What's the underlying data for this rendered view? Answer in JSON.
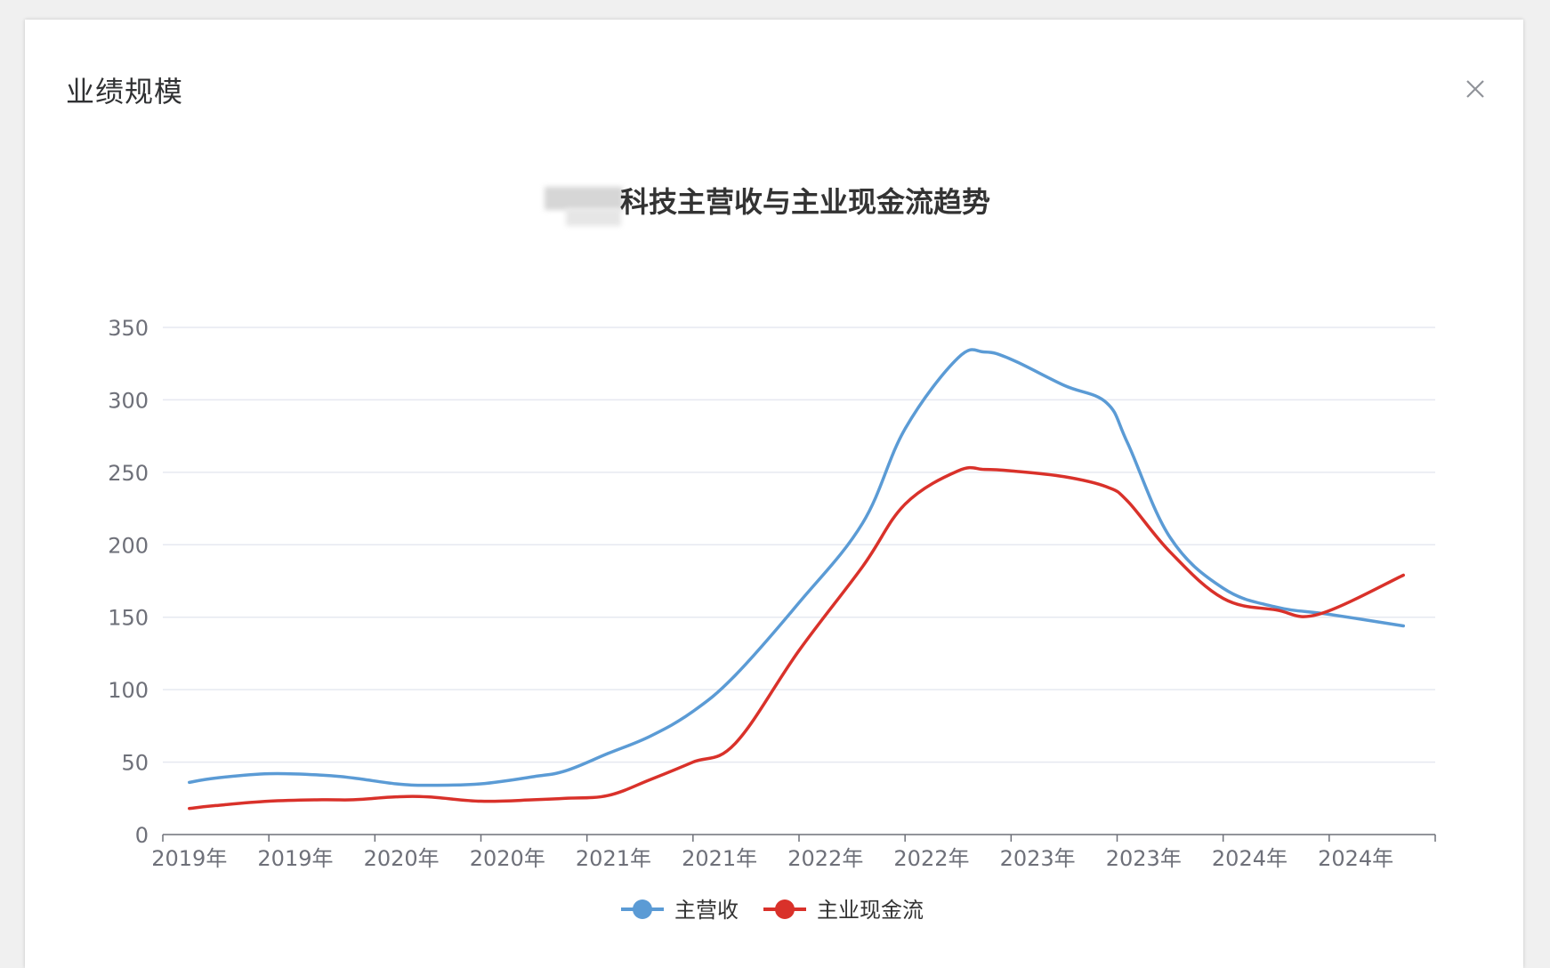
{
  "modal": {
    "title": "业绩规模",
    "close_icon": "close-icon"
  },
  "chart_data": {
    "type": "line",
    "title": "科技主营收与主业现金流趋势",
    "categories": [
      "2019年",
      "2019年",
      "2020年",
      "2020年",
      "2021年",
      "2021年",
      "2022年",
      "2022年",
      "2023年",
      "2023年",
      "2024年",
      "2024年"
    ],
    "ylim": [
      0,
      350
    ],
    "yticks": [
      0,
      50,
      100,
      150,
      200,
      250,
      300,
      350
    ],
    "grid": true,
    "legend_position": "bottom",
    "series": [
      {
        "name": "主营收",
        "color": "#5B9BD5",
        "x": [
          0.25,
          0.5,
          1.0,
          1.5,
          1.8,
          2.2,
          2.5,
          3.0,
          3.5,
          3.8,
          4.2,
          4.6,
          5.0,
          5.4,
          6.0,
          6.6,
          7.0,
          7.5,
          7.75,
          8.0,
          8.5,
          8.9,
          9.1,
          9.5,
          10.0,
          10.5,
          11.0,
          11.7
        ],
        "values": [
          36,
          39,
          42,
          41,
          39,
          35,
          34,
          35,
          40,
          44,
          56,
          68,
          85,
          110,
          160,
          215,
          280,
          329,
          333,
          328,
          310,
          298,
          270,
          205,
          170,
          157,
          152,
          144
        ]
      },
      {
        "name": "主业现金流",
        "color": "#D9312A",
        "x": [
          0.25,
          0.5,
          1.0,
          1.5,
          1.8,
          2.2,
          2.5,
          3.0,
          3.5,
          3.8,
          4.2,
          4.6,
          5.0,
          5.4,
          6.0,
          6.6,
          7.0,
          7.5,
          7.75,
          8.0,
          8.5,
          8.9,
          9.1,
          9.5,
          10.0,
          10.5,
          10.9,
          11.7
        ],
        "values": [
          18,
          20,
          23,
          24,
          24,
          26,
          26,
          23,
          24,
          25,
          27,
          38,
          50,
          63,
          127,
          185,
          228,
          251,
          252,
          251,
          247,
          240,
          230,
          195,
          163,
          155,
          152,
          179
        ]
      }
    ]
  }
}
